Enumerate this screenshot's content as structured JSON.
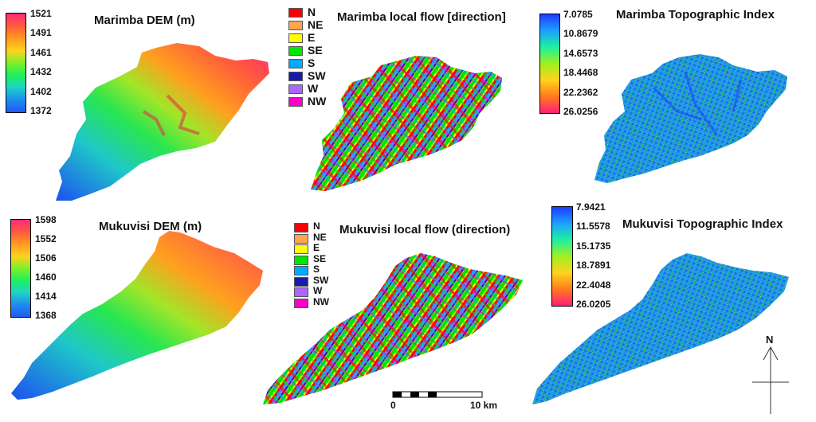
{
  "panels": {
    "marimba_dem": {
      "title": "Marimba DEM (m)",
      "ticks": [
        "1521",
        "1491",
        "1461",
        "1432",
        "1402",
        "1372"
      ],
      "colors": [
        "#ff2a78",
        "#ff5a3c",
        "#ff9a1e",
        "#ffd21e",
        "#7ef028",
        "#1ef05a",
        "#1ed2c8",
        "#1e8cf0",
        "#1e5af0"
      ]
    },
    "marimba_flow": {
      "title": "Marimba local flow [direction]",
      "legend": [
        {
          "label": "N",
          "color": "#ff0000"
        },
        {
          "label": "NE",
          "color": "#ffa64d"
        },
        {
          "label": "E",
          "color": "#ffff00"
        },
        {
          "label": "SE",
          "color": "#00e600"
        },
        {
          "label": "S",
          "color": "#00aaff"
        },
        {
          "label": "SW",
          "color": "#1a1aaa"
        },
        {
          "label": "W",
          "color": "#aa66ff"
        },
        {
          "label": "NW",
          "color": "#ff00cc"
        }
      ]
    },
    "marimba_ti": {
      "title": "Marimba Topographic Index",
      "ticks": [
        "7.0785",
        "10.8679",
        "14.6573",
        "18.4468",
        "22.2362",
        "26.0256"
      ],
      "colors": [
        "#1e3cff",
        "#1ea0ff",
        "#1ef0a0",
        "#a0f01e",
        "#ffd21e",
        "#ff7a1e",
        "#ff1e78"
      ]
    },
    "mukuvisi_dem": {
      "title": "Mukuvisi DEM (m)",
      "ticks": [
        "1598",
        "1552",
        "1506",
        "1460",
        "1414",
        "1368"
      ],
      "colors": [
        "#ff2a78",
        "#ff5a3c",
        "#ff9a1e",
        "#ffd21e",
        "#7ef028",
        "#1ef05a",
        "#1ed2c8",
        "#1e8cf0",
        "#1e5af0"
      ]
    },
    "mukuvisi_flow": {
      "title": "Mukuvisi local flow (direction)",
      "legend": [
        {
          "label": "N",
          "color": "#ff0000"
        },
        {
          "label": "NE",
          "color": "#ffa64d"
        },
        {
          "label": "E",
          "color": "#ffff00"
        },
        {
          "label": "SE",
          "color": "#00e600"
        },
        {
          "label": "S",
          "color": "#00aaff"
        },
        {
          "label": "SW",
          "color": "#1a1aaa"
        },
        {
          "label": "W",
          "color": "#aa66ff"
        },
        {
          "label": "NW",
          "color": "#ff00cc"
        }
      ]
    },
    "mukuvisi_ti": {
      "title": "Mukuvisi Topographic Index",
      "ticks": [
        "7.9421",
        "11.5578",
        "15.1735",
        "18.7891",
        "22.4048",
        "26.0205"
      ],
      "colors": [
        "#1e3cff",
        "#1ea0ff",
        "#1ef0a0",
        "#a0f01e",
        "#ffd21e",
        "#ff7a1e",
        "#ff1e78"
      ]
    }
  },
  "scale_bar": {
    "start_label": "0",
    "end_label": "10 km"
  },
  "north_arrow": {
    "label": "N"
  }
}
